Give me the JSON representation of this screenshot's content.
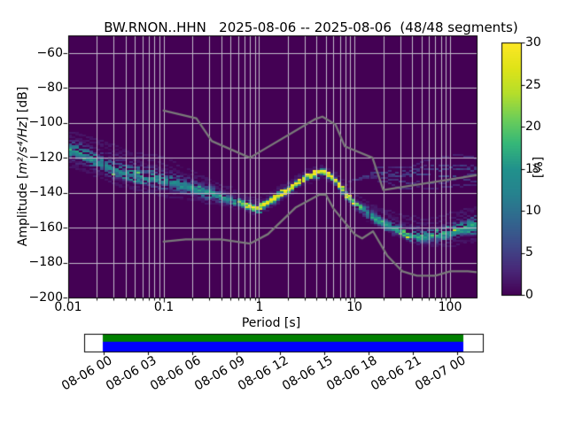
{
  "title": "BW.RNON..HHN   2025-08-06 -- 2025-08-06  (48/48 segments)",
  "y_axis": {
    "label_prefix": "Amplitude [",
    "label_math": "m²/s⁴/Hz",
    "label_suffix": "] [dB]",
    "tick_labels": [
      "−60",
      "−80",
      "−100",
      "−120",
      "−140",
      "−160",
      "−180",
      "−200"
    ]
  },
  "x_axis": {
    "label": "Period [s]",
    "tick_labels": [
      "0.01",
      "0.1",
      "1",
      "10",
      "100"
    ]
  },
  "colorbar": {
    "label": "[%]",
    "tick_labels": [
      "0",
      "5",
      "10",
      "15",
      "20",
      "25",
      "30"
    ]
  },
  "timeline": {
    "tick_labels": [
      "08-06 00",
      "08-06 03",
      "08-06 06",
      "08-06 09",
      "08-06 12",
      "08-06 15",
      "08-06 18",
      "08-06 21",
      "08-07 00"
    ]
  },
  "chart_data": {
    "type": "heatmap",
    "title": "BW.RNON..HHN   2025-08-06 -- 2025-08-06  (48/48 segments)",
    "xlabel": "Period [s]",
    "ylabel": "Amplitude [m²/s⁴/Hz] [dB]",
    "x_scale": "log",
    "x_range": [
      0.01,
      190
    ],
    "y_range": [
      -200,
      -50
    ],
    "x_ticks": [
      0.01,
      0.1,
      1,
      10,
      100
    ],
    "y_ticks": [
      -60,
      -80,
      -100,
      -120,
      -140,
      -160,
      -180,
      -200
    ],
    "grid": true,
    "segments_used": 48,
    "segments_total": 48,
    "colorbar": {
      "label": "[%]",
      "range": [
        0,
        30
      ],
      "ticks": [
        0,
        5,
        10,
        15,
        20,
        25,
        30
      ],
      "colormap": "viridis"
    },
    "colors": {
      "background": "#440154",
      "grid": "#c2bccb",
      "noise_model": "#7a7a7a",
      "frame": "#000000",
      "viridis_min": "#440154",
      "viridis_max": "#fde725"
    },
    "noise_models": {
      "nhnm": [
        [
          0.1,
          -93
        ],
        [
          0.22,
          -97.4
        ],
        [
          0.32,
          -110.5
        ],
        [
          0.8,
          -120
        ],
        [
          3.8,
          -98.1
        ],
        [
          4.6,
          -96.5
        ],
        [
          6.3,
          -101
        ],
        [
          7.9,
          -113.5
        ],
        [
          15.4,
          -120
        ],
        [
          20,
          -138.5
        ],
        [
          190,
          -130
        ]
      ],
      "nlnm": [
        [
          0.1,
          -168
        ],
        [
          0.17,
          -166.7
        ],
        [
          0.4,
          -166.7
        ],
        [
          0.8,
          -169.2
        ],
        [
          1.24,
          -163.7
        ],
        [
          2.4,
          -148.6
        ],
        [
          4.3,
          -141.1
        ],
        [
          5,
          -141.1
        ],
        [
          6,
          -149
        ],
        [
          10,
          -163.8
        ],
        [
          12,
          -166.2
        ],
        [
          15.6,
          -162.1
        ],
        [
          21.9,
          -175.9
        ],
        [
          31.6,
          -185
        ],
        [
          45,
          -187.5
        ],
        [
          70,
          -187.5
        ],
        [
          101,
          -185
        ],
        [
          154,
          -185
        ],
        [
          190,
          -185.5
        ]
      ]
    },
    "psd_band": {
      "mode": [
        [
          0.01,
          -115.5
        ],
        [
          0.02,
          -122
        ],
        [
          0.03,
          -127
        ],
        [
          0.05,
          -130
        ],
        [
          0.1,
          -133
        ],
        [
          0.2,
          -137
        ],
        [
          0.3,
          -139.5
        ],
        [
          0.5,
          -143.5
        ],
        [
          0.7,
          -146.5
        ],
        [
          0.9,
          -148.5
        ],
        [
          1.2,
          -144.5
        ],
        [
          1.9,
          -137.5
        ],
        [
          3,
          -129.5
        ],
        [
          4.5,
          -126
        ],
        [
          6,
          -131
        ],
        [
          8,
          -140
        ],
        [
          10,
          -145.5
        ],
        [
          13,
          -151
        ],
        [
          18,
          -156.5
        ],
        [
          25,
          -160.5
        ],
        [
          35,
          -163.5
        ],
        [
          50,
          -165
        ],
        [
          70,
          -164.5
        ],
        [
          100,
          -162
        ],
        [
          140,
          -160
        ],
        [
          190,
          -157.5
        ]
      ],
      "upper": [
        [
          0.01,
          -103.5
        ],
        [
          0.03,
          -113
        ],
        [
          0.1,
          -122
        ],
        [
          0.3,
          -132
        ],
        [
          0.6,
          -140
        ],
        [
          0.9,
          -143.5
        ],
        [
          1.5,
          -136.5
        ],
        [
          3,
          -127.5
        ],
        [
          4.5,
          -124.5
        ],
        [
          6,
          -128.5
        ],
        [
          8,
          -136.5
        ],
        [
          10,
          -141
        ],
        [
          15,
          -147
        ],
        [
          25,
          -152
        ],
        [
          50,
          -156
        ],
        [
          100,
          -152
        ],
        [
          190,
          -147
        ]
      ],
      "lower": [
        [
          0.01,
          -124
        ],
        [
          0.03,
          -134
        ],
        [
          0.1,
          -140.5
        ],
        [
          0.3,
          -145
        ],
        [
          0.6,
          -148.5
        ],
        [
          0.9,
          -151.5
        ],
        [
          1.5,
          -146
        ],
        [
          3,
          -133.5
        ],
        [
          4.5,
          -130
        ],
        [
          6,
          -135
        ],
        [
          8,
          -144
        ],
        [
          10,
          -150
        ],
        [
          15,
          -157
        ],
        [
          25,
          -164.5
        ],
        [
          50,
          -170
        ],
        [
          100,
          -170
        ],
        [
          190,
          -167
        ]
      ],
      "mode_intensity_pct": [
        [
          0.01,
          15
        ],
        [
          0.02,
          14
        ],
        [
          0.05,
          14
        ],
        [
          0.1,
          13
        ],
        [
          0.3,
          15
        ],
        [
          0.55,
          18
        ],
        [
          0.75,
          28
        ],
        [
          0.9,
          30
        ],
        [
          8,
          30
        ],
        [
          9.5,
          22
        ],
        [
          12,
          17
        ],
        [
          20,
          16
        ],
        [
          30,
          19
        ],
        [
          60,
          18
        ],
        [
          100,
          16
        ],
        [
          190,
          16
        ]
      ]
    },
    "elevated_band": {
      "center": [
        [
          9,
          -132
        ],
        [
          15,
          -129
        ],
        [
          30,
          -130.5
        ],
        [
          60,
          -128.5
        ],
        [
          120,
          -127.5
        ],
        [
          190,
          -128
        ]
      ],
      "halfwidth": [
        [
          9,
          1.5
        ],
        [
          20,
          5
        ],
        [
          60,
          7
        ],
        [
          190,
          8
        ]
      ],
      "intensity_pct": 4
    }
  },
  "timeline_bar": {
    "data_color": "#008000",
    "gap_color": "#0000ff",
    "fill_color": "#ffffff"
  }
}
